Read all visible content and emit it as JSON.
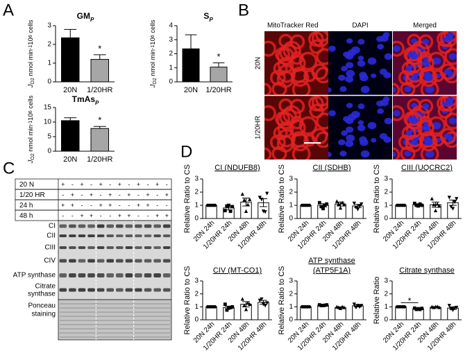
{
  "panel_labels": [
    "A",
    "B",
    "C",
    "D"
  ],
  "panel_b": {
    "columns": [
      "MitoTracker Red",
      "DAPI",
      "Merged"
    ],
    "rows": [
      "20N",
      "1/20HR"
    ]
  },
  "panel_c": {
    "table": {
      "rows": [
        {
          "label": "20 N",
          "cells": [
            "+",
            "-",
            "+",
            "-",
            "+",
            "-",
            "+",
            "-",
            "+",
            "-",
            "+",
            "-"
          ]
        },
        {
          "label": "1/20 HR",
          "cells": [
            "-",
            "+",
            "-",
            "+",
            "-",
            "+",
            "-",
            "+",
            "-",
            "+",
            "-",
            "+"
          ]
        },
        {
          "label": "24 h",
          "cells": [
            "+",
            "+",
            "-",
            "-",
            "+",
            "+",
            "-",
            "-",
            "+",
            "+",
            "-",
            "-"
          ]
        },
        {
          "label": "48 h",
          "cells": [
            "-",
            "-",
            "+",
            "+",
            "-",
            "-",
            "+",
            "+",
            "-",
            "-",
            "+",
            "+"
          ]
        }
      ]
    },
    "bands": [
      [
        "CI"
      ],
      [
        "CII"
      ],
      [
        "CIII"
      ],
      [
        "CIV"
      ],
      [
        "ATP synthase"
      ],
      [
        "Citrate",
        "synthase"
      ],
      [
        "Ponceau",
        "staining"
      ]
    ]
  },
  "chart_data": [
    {
      "type": "bar",
      "title": "GM",
      "title_sub": "P",
      "ylabel_parts": [
        {
          "text": "J",
          "shift": "base"
        },
        {
          "text": "O2",
          "shift": "sub"
        },
        {
          "text": " nmol min",
          "shift": "base"
        },
        {
          "text": "-1",
          "shift": "sup"
        },
        {
          "text": "10",
          "shift": "base"
        },
        {
          "text": "6",
          "shift": "sup"
        },
        {
          "text": " cells",
          "shift": "base"
        }
      ],
      "categories": [
        "20N",
        "1/20HR"
      ],
      "values": [
        2.35,
        1.2
      ],
      "errors": [
        0.45,
        0.25
      ],
      "error_direction": "up",
      "colors": [
        "#000000",
        "#a6a6a6"
      ],
      "ylim": [
        0,
        3
      ],
      "yticks": [
        0,
        1,
        2,
        3
      ],
      "annotations": [
        {
          "text": "*",
          "categories": [
            1
          ]
        }
      ]
    },
    {
      "type": "bar",
      "title": "S",
      "title_sub": "P",
      "ylabel_parts": [
        {
          "text": "J",
          "shift": "base"
        },
        {
          "text": "O2",
          "shift": "sub"
        },
        {
          "text": " nmol min",
          "shift": "base"
        },
        {
          "text": "-1",
          "shift": "sup"
        },
        {
          "text": "10",
          "shift": "base"
        },
        {
          "text": "6",
          "shift": "sup"
        },
        {
          "text": " cells",
          "shift": "base"
        }
      ],
      "categories": [
        "20N",
        "1/20HR"
      ],
      "values": [
        2.35,
        1.05
      ],
      "errors": [
        1.0,
        0.3
      ],
      "error_direction": "up",
      "colors": [
        "#000000",
        "#a6a6a6"
      ],
      "ylim": [
        0,
        4
      ],
      "yticks": [
        0,
        1,
        2,
        3,
        4
      ],
      "annotations": [
        {
          "text": "*",
          "categories": [
            1
          ]
        }
      ]
    },
    {
      "type": "bar",
      "title": "TmAs",
      "title_sub": "P",
      "ylabel_parts": [
        {
          "text": "J",
          "shift": "base"
        },
        {
          "text": "O2",
          "shift": "sub"
        },
        {
          "text": " nmol min",
          "shift": "base"
        },
        {
          "text": "-1",
          "shift": "sup"
        },
        {
          "text": "10",
          "shift": "base"
        },
        {
          "text": "6",
          "shift": "sup"
        },
        {
          "text": " cells",
          "shift": "base"
        }
      ],
      "categories": [
        "20N",
        "1/20HR"
      ],
      "values": [
        10.5,
        7.8
      ],
      "errors": [
        1.0,
        0.7
      ],
      "error_direction": "up",
      "colors": [
        "#000000",
        "#a6a6a6"
      ],
      "ylim": [
        0,
        15
      ],
      "yticks": [
        0,
        5,
        10,
        15
      ],
      "annotations": [
        {
          "text": "*",
          "categories": [
            1
          ]
        }
      ]
    },
    {
      "type": "bar",
      "title_lines": [
        "CI (NDUFB8)"
      ],
      "ylabel": "Relative Ratio to CS",
      "categories": [
        "20N 24h",
        "1/20HR 24h",
        "20N 48h",
        "1/20HR 48h"
      ],
      "values": [
        1,
        0.8,
        1.25,
        1.2
      ],
      "errors": [
        0,
        0.15,
        0.3,
        0.3
      ],
      "error_direction": "both",
      "color": "#ffffff",
      "markers": [
        "circle",
        "square",
        "triangle",
        "triangle-down"
      ],
      "points": [
        [
          1,
          1,
          1,
          1,
          1
        ],
        [
          0.6,
          0.95,
          1.0,
          0.55,
          0.9
        ],
        [
          1.85,
          1.4,
          0.55,
          1.05,
          1.45
        ],
        [
          1.6,
          1.45,
          0.55,
          0.5,
          1.9
        ]
      ],
      "ylim": [
        0,
        3
      ],
      "yticks": [
        0,
        1,
        2,
        3
      ]
    },
    {
      "type": "bar",
      "title_lines": [
        "CII (SDHB)"
      ],
      "ylabel": "Relative Ratio to CS",
      "categories": [
        "20N 24h",
        "1/20HR 24h",
        "20N 48h",
        "1/20HR 48h"
      ],
      "values": [
        1,
        1.0,
        1.1,
        0.95
      ],
      "errors": [
        0,
        0.12,
        0.15,
        0.12
      ],
      "error_direction": "both",
      "color": "#ffffff",
      "markers": [
        "circle",
        "square",
        "triangle",
        "triangle-down"
      ],
      "points": [
        [
          1,
          1,
          1,
          1,
          1
        ],
        [
          1.2,
          0.9,
          0.75,
          1.0,
          1.1
        ],
        [
          1.3,
          1.1,
          0.8,
          1.2,
          1.05
        ],
        [
          1.15,
          0.85,
          0.7,
          0.95,
          1.1
        ]
      ],
      "ylim": [
        0,
        3
      ],
      "yticks": [
        0,
        1,
        2,
        3
      ]
    },
    {
      "type": "bar",
      "title_lines": [
        "CIII (UQCRC2)"
      ],
      "ylabel": "Relative Ratio to CS",
      "categories": [
        "20N 24h",
        "1/20HR 24h",
        "20N 48h",
        "1/20HR 48h"
      ],
      "values": [
        1,
        1.05,
        1.05,
        1.2
      ],
      "errors": [
        0,
        0.07,
        0.2,
        0.2
      ],
      "error_direction": "both",
      "color": "#ffffff",
      "markers": [
        "circle",
        "square",
        "triangle",
        "triangle-down"
      ],
      "points": [
        [
          1,
          1,
          1,
          1,
          1
        ],
        [
          1.15,
          1.0,
          0.95,
          1.1,
          1.0
        ],
        [
          1.5,
          1.05,
          0.6,
          1.1,
          0.95
        ],
        [
          1.6,
          0.9,
          0.75,
          1.25,
          1.5
        ]
      ],
      "ylim": [
        0,
        3
      ],
      "yticks": [
        0,
        1,
        2,
        3
      ]
    },
    {
      "type": "bar",
      "title_lines": [
        "CIV (MT-CO1)"
      ],
      "ylabel": "Relative Ratio to CS",
      "categories": [
        "20N 24h",
        "1/20HR 24h",
        "20N 48h",
        "1/20HR 48h"
      ],
      "values": [
        1,
        0.95,
        1.2,
        1.35
      ],
      "errors": [
        0,
        0.1,
        0.2,
        0.15
      ],
      "error_direction": "both",
      "color": "#ffffff",
      "markers": [
        "circle",
        "square",
        "triangle",
        "triangle-down"
      ],
      "points": [
        [
          1,
          1,
          1,
          1,
          1
        ],
        [
          1.2,
          0.75,
          0.9,
          0.95,
          1.0
        ],
        [
          1.6,
          1.1,
          0.8,
          1.3,
          1.2
        ],
        [
          1.5,
          1.6,
          1.2,
          1.1,
          1.3
        ]
      ],
      "ylim": [
        0,
        3
      ],
      "yticks": [
        0,
        1,
        2,
        3
      ]
    },
    {
      "type": "bar",
      "title_lines": [
        "ATP synthase",
        "(ATP5F1A)"
      ],
      "ylabel": "Relative Ratio to CS",
      "categories": [
        "20N 24h",
        "1/20HR 24h",
        "20N 48h",
        "1/20HR 48h"
      ],
      "values": [
        1,
        1.12,
        0.95,
        1.08
      ],
      "errors": [
        0,
        0.03,
        0.05,
        0.08
      ],
      "error_direction": "both",
      "color": "#ffffff",
      "markers": [
        "circle",
        "square",
        "triangle",
        "triangle-down"
      ],
      "points": [
        [
          1,
          1,
          1,
          1,
          1
        ],
        [
          1.15,
          1.1,
          1.1,
          1.12,
          1.15
        ],
        [
          1.0,
          0.95,
          0.88,
          1.0,
          0.95
        ],
        [
          1.2,
          0.95,
          1.1,
          1.0,
          1.1
        ]
      ],
      "ylim": [
        0,
        3
      ],
      "yticks": [
        0,
        1,
        2,
        3
      ]
    },
    {
      "type": "bar",
      "title_lines": [
        "Citrate synthase"
      ],
      "ylabel": "Relative Ratio",
      "categories": [
        "20N 24h",
        "1/20HR 24h",
        "20N 48h",
        "1/20HR 48h"
      ],
      "values": [
        1,
        0.85,
        0.97,
        0.9
      ],
      "errors": [
        0,
        0.05,
        0.04,
        0.1
      ],
      "error_direction": "both",
      "color": "#ffffff",
      "markers": [
        "circle",
        "square",
        "triangle",
        "triangle-down"
      ],
      "points": [
        [
          1,
          1,
          1,
          1,
          1
        ],
        [
          0.9,
          0.8,
          0.85,
          0.8,
          0.88
        ],
        [
          1.0,
          0.95,
          1.0,
          1.02,
          0.95
        ],
        [
          1.1,
          0.85,
          0.75,
          0.9,
          0.95
        ]
      ],
      "ylim": [
        0,
        3
      ],
      "yticks": [
        0,
        1,
        2,
        3
      ],
      "annotations": [
        {
          "text": "*",
          "categories": [
            0,
            1
          ]
        }
      ]
    }
  ]
}
